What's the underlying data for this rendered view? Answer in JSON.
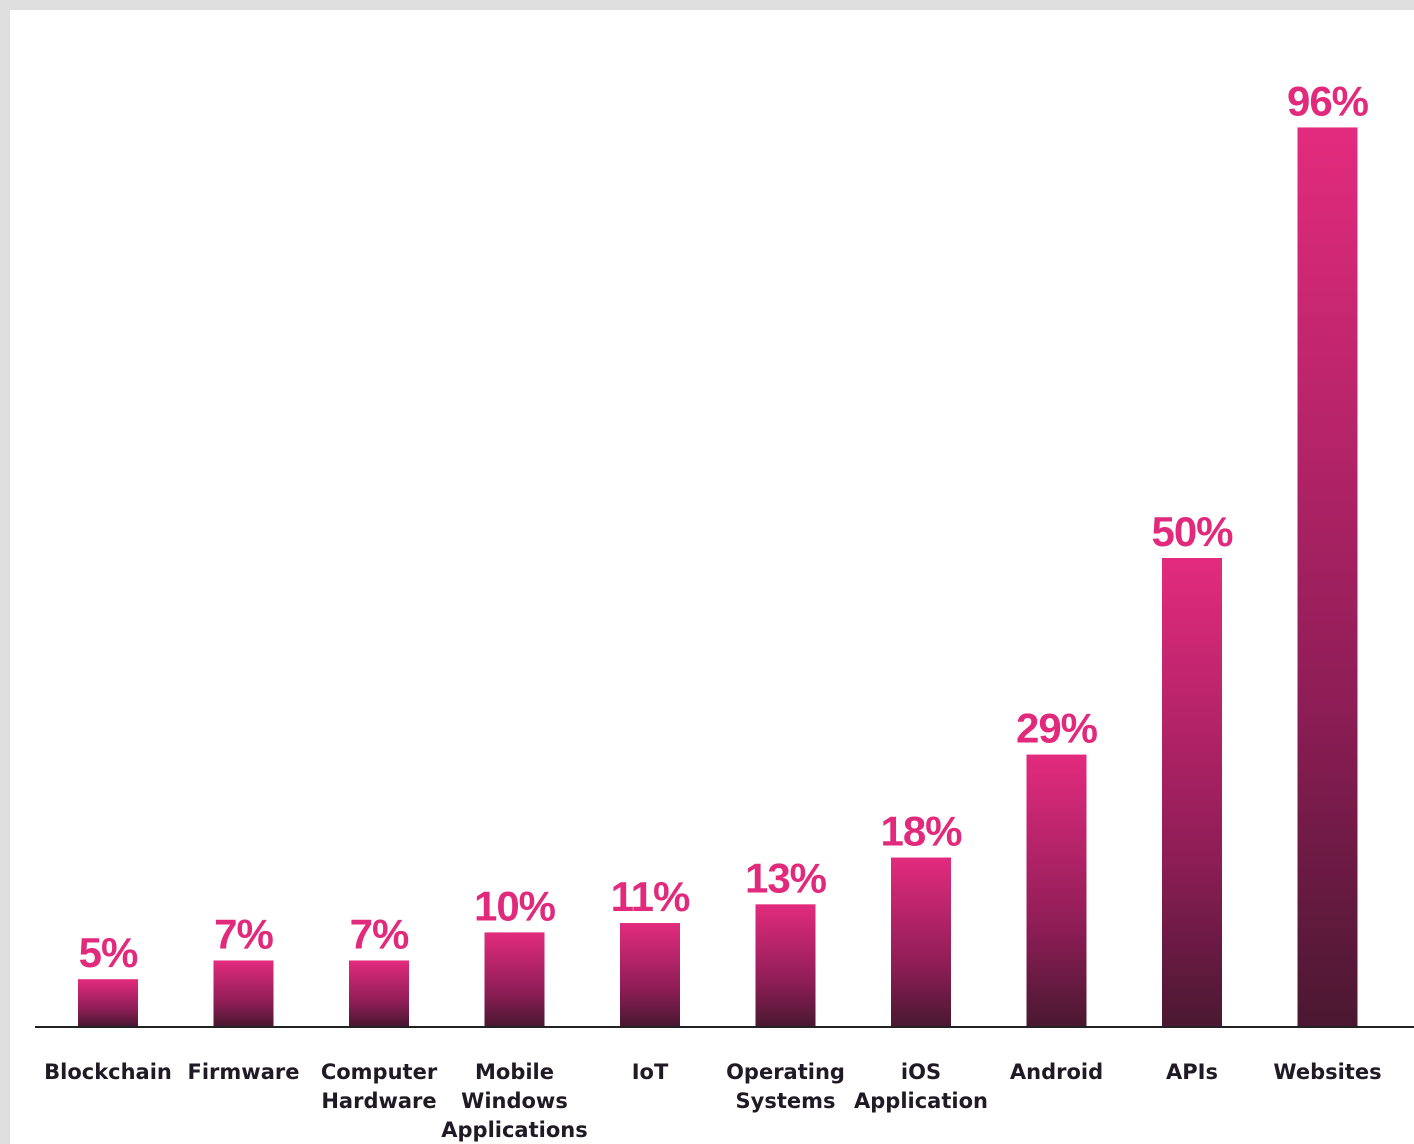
{
  "colors": {
    "label": "#e12a7c",
    "bar_bottom": "#4a1830",
    "bar_top": "#e32b7e",
    "axis": "#222222",
    "category_text": "#1f1a24"
  },
  "chart_data": {
    "type": "bar",
    "title": "",
    "xlabel": "",
    "ylabel": "",
    "ylim": [
      0,
      100
    ],
    "grid": false,
    "legend": "none",
    "categories": [
      "Blockchain",
      "Firmware",
      "Computer Hardware",
      "Mobile Windows Applications",
      "IoT",
      "Operating Systems",
      "iOS Application",
      "Android",
      "APIs",
      "Websites"
    ],
    "category_lines": [
      [
        "Blockchain"
      ],
      [
        "Firmware"
      ],
      [
        "Computer",
        "Hardware"
      ],
      [
        "Mobile",
        "Windows",
        "Applications"
      ],
      [
        "IoT"
      ],
      [
        "Operating",
        "Systems"
      ],
      [
        "iOS",
        "Application"
      ],
      [
        "Android"
      ],
      [
        "APIs"
      ],
      [
        "Websites"
      ]
    ],
    "values": [
      5,
      7,
      7,
      10,
      11,
      13,
      18,
      29,
      50,
      96
    ],
    "value_labels": [
      "5%",
      "7%",
      "7%",
      "10%",
      "11%",
      "13%",
      "18%",
      "29%",
      "50%",
      "96%"
    ]
  }
}
